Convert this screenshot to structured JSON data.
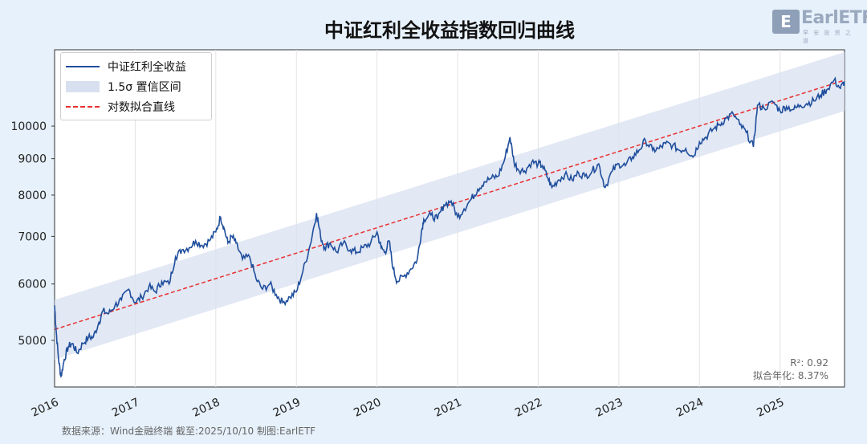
{
  "title": "中证红利全收益指数回归曲线",
  "logo": {
    "text": "EarlETF",
    "tagline": "早 安 投 资 之 道"
  },
  "source": "数据来源：Wind金融终端 截至:2025/10/10 制图:EarlETF",
  "stats": {
    "r2": "R²: 0.92",
    "annual": "拟合年化: 8.37%"
  },
  "legend": {
    "series": "中证红利全收益",
    "band": "1.5σ 置信区间",
    "fit": "对数拟合直线"
  },
  "colors": {
    "series": "#1f4e9c",
    "band": "#d8e0f0",
    "fit": "#e83030",
    "plot_bg": "#ffffff",
    "page_bg": "#e7f1fb"
  },
  "chart_data": {
    "type": "line",
    "title": "中证红利全收益指数回归曲线",
    "yscale": "log",
    "ylim": [
      4300,
      12800
    ],
    "yticks": [
      5000,
      6000,
      7000,
      8000,
      9000,
      10000
    ],
    "xlim": [
      2016.0,
      2025.8
    ],
    "xticks": [
      "2016",
      "2017",
      "2018",
      "2019",
      "2020",
      "2021",
      "2022",
      "2023",
      "2024",
      "2025"
    ],
    "grid": "vertical",
    "legend_position": "top-left",
    "series": [
      {
        "name": "中证红利全收益",
        "points": [
          [
            2016.0,
            5600
          ],
          [
            2016.02,
            5150
          ],
          [
            2016.05,
            4700
          ],
          [
            2016.08,
            4450
          ],
          [
            2016.12,
            4700
          ],
          [
            2016.17,
            4900
          ],
          [
            2016.22,
            4950
          ],
          [
            2016.28,
            4800
          ],
          [
            2016.35,
            4950
          ],
          [
            2016.42,
            5050
          ],
          [
            2016.48,
            5050
          ],
          [
            2016.55,
            5300
          ],
          [
            2016.6,
            5500
          ],
          [
            2016.67,
            5450
          ],
          [
            2016.75,
            5600
          ],
          [
            2016.83,
            5700
          ],
          [
            2016.92,
            5900
          ],
          [
            2017.0,
            5650
          ],
          [
            2017.08,
            5750
          ],
          [
            2017.17,
            5950
          ],
          [
            2017.25,
            5850
          ],
          [
            2017.33,
            6050
          ],
          [
            2017.42,
            6000
          ],
          [
            2017.5,
            6550
          ],
          [
            2017.58,
            6700
          ],
          [
            2017.67,
            6750
          ],
          [
            2017.75,
            6900
          ],
          [
            2017.83,
            6800
          ],
          [
            2017.92,
            6900
          ],
          [
            2018.0,
            7100
          ],
          [
            2018.06,
            7450
          ],
          [
            2018.1,
            7200
          ],
          [
            2018.15,
            6850
          ],
          [
            2018.2,
            7000
          ],
          [
            2018.25,
            6850
          ],
          [
            2018.33,
            6500
          ],
          [
            2018.42,
            6550
          ],
          [
            2018.5,
            6100
          ],
          [
            2018.58,
            5900
          ],
          [
            2018.67,
            6000
          ],
          [
            2018.75,
            5800
          ],
          [
            2018.83,
            5650
          ],
          [
            2018.92,
            5750
          ],
          [
            2019.0,
            5850
          ],
          [
            2019.08,
            6250
          ],
          [
            2019.17,
            6800
          ],
          [
            2019.25,
            7550
          ],
          [
            2019.3,
            7000
          ],
          [
            2019.35,
            6750
          ],
          [
            2019.42,
            6850
          ],
          [
            2019.5,
            6650
          ],
          [
            2019.58,
            6850
          ],
          [
            2019.67,
            6700
          ],
          [
            2019.75,
            6650
          ],
          [
            2019.83,
            6750
          ],
          [
            2019.92,
            6850
          ],
          [
            2020.0,
            7100
          ],
          [
            2020.05,
            6750
          ],
          [
            2020.1,
            6650
          ],
          [
            2020.15,
            6900
          ],
          [
            2020.2,
            6300
          ],
          [
            2020.25,
            6050
          ],
          [
            2020.33,
            6150
          ],
          [
            2020.42,
            6300
          ],
          [
            2020.5,
            6500
          ],
          [
            2020.55,
            7100
          ],
          [
            2020.58,
            7400
          ],
          [
            2020.67,
            7500
          ],
          [
            2020.75,
            7400
          ],
          [
            2020.83,
            7750
          ],
          [
            2020.92,
            7850
          ],
          [
            2021.0,
            7450
          ],
          [
            2021.08,
            7650
          ],
          [
            2021.17,
            7900
          ],
          [
            2021.25,
            8150
          ],
          [
            2021.33,
            8350
          ],
          [
            2021.42,
            8450
          ],
          [
            2021.5,
            8500
          ],
          [
            2021.58,
            8950
          ],
          [
            2021.65,
            9650
          ],
          [
            2021.7,
            8900
          ],
          [
            2021.75,
            8700
          ],
          [
            2021.83,
            8650
          ],
          [
            2021.92,
            8900
          ],
          [
            2022.0,
            8850
          ],
          [
            2022.05,
            8800
          ],
          [
            2022.12,
            8450
          ],
          [
            2022.17,
            8200
          ],
          [
            2022.25,
            8400
          ],
          [
            2022.33,
            8550
          ],
          [
            2022.42,
            8400
          ],
          [
            2022.5,
            8600
          ],
          [
            2022.58,
            8500
          ],
          [
            2022.67,
            8650
          ],
          [
            2022.75,
            8850
          ],
          [
            2022.83,
            8200
          ],
          [
            2022.92,
            8650
          ],
          [
            2023.0,
            8850
          ],
          [
            2023.08,
            8800
          ],
          [
            2023.17,
            9050
          ],
          [
            2023.25,
            9250
          ],
          [
            2023.33,
            9550
          ],
          [
            2023.42,
            9250
          ],
          [
            2023.5,
            9300
          ],
          [
            2023.58,
            9450
          ],
          [
            2023.67,
            9400
          ],
          [
            2023.75,
            9250
          ],
          [
            2023.83,
            9300
          ],
          [
            2023.92,
            9050
          ],
          [
            2024.0,
            9500
          ],
          [
            2024.08,
            9650
          ],
          [
            2024.17,
            9900
          ],
          [
            2024.25,
            10050
          ],
          [
            2024.33,
            10250
          ],
          [
            2024.42,
            10400
          ],
          [
            2024.5,
            10050
          ],
          [
            2024.58,
            9800
          ],
          [
            2024.67,
            9350
          ],
          [
            2024.72,
            10700
          ],
          [
            2024.8,
            10600
          ],
          [
            2024.92,
            10800
          ],
          [
            2025.0,
            10500
          ],
          [
            2025.08,
            10650
          ],
          [
            2025.17,
            10550
          ],
          [
            2025.25,
            10700
          ],
          [
            2025.33,
            10750
          ],
          [
            2025.42,
            10850
          ],
          [
            2025.5,
            11050
          ],
          [
            2025.58,
            11250
          ],
          [
            2025.67,
            11600
          ],
          [
            2025.75,
            11300
          ],
          [
            2025.8,
            11550
          ]
        ]
      }
    ],
    "fit": {
      "name": "对数拟合直线",
      "start": [
        2016.0,
        5180
      ],
      "end": [
        2025.8,
        11600
      ]
    },
    "band": {
      "name": "1.5σ 置信区间",
      "upper_start": 5700,
      "upper_end": 12700,
      "lower_start": 4700,
      "lower_end": 10500
    },
    "annotations": [
      "R²: 0.92",
      "拟合年化: 8.37%"
    ]
  }
}
